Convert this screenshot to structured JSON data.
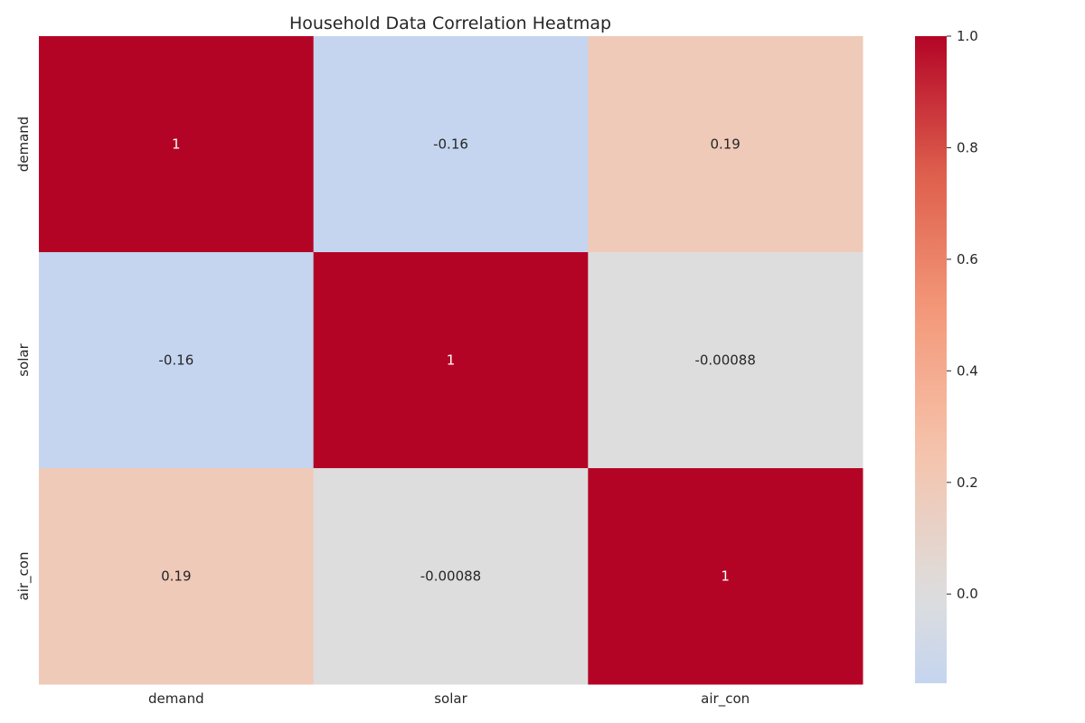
{
  "chart_data": {
    "type": "heatmap",
    "title": "Household Data Correlation Heatmap",
    "xlabel": "",
    "ylabel": "",
    "x_categories": [
      "demand",
      "solar",
      "air_con"
    ],
    "y_categories": [
      "demand",
      "solar",
      "air_con"
    ],
    "values": [
      [
        1,
        -0.16,
        0.19
      ],
      [
        -0.16,
        1,
        -0.00088
      ],
      [
        0.19,
        -0.00088,
        1
      ]
    ],
    "annotations": [
      [
        "1",
        "-0.16",
        "0.19"
      ],
      [
        "-0.16",
        "1",
        "-0.00088"
      ],
      [
        "0.19",
        "-0.00088",
        "1"
      ]
    ],
    "colormap": "coolwarm",
    "center": 0,
    "colorbar": {
      "vmin": -0.16,
      "vmax": 1.0,
      "ticks": [
        0.0,
        0.2,
        0.4,
        0.6,
        0.8,
        1.0
      ],
      "tick_labels": [
        "0.0",
        "0.2",
        "0.4",
        "0.6",
        "0.8",
        "1.0"
      ]
    },
    "grid": false,
    "legend": "colorbar-right"
  }
}
